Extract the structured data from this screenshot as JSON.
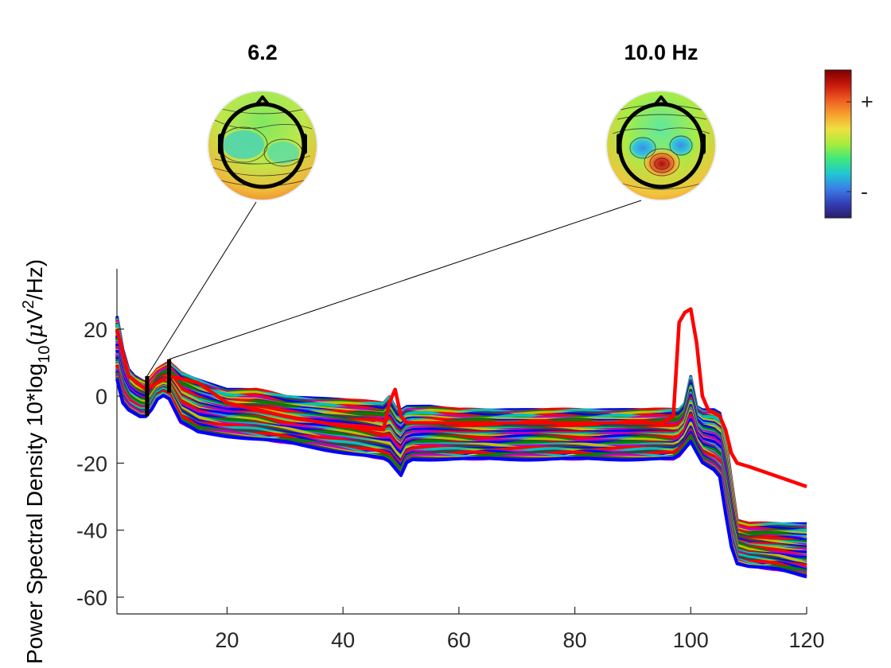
{
  "chart_data": {
    "type": "line",
    "ylabel": {
      "main": "Power Spectral Density 10*log",
      "sub10": "10",
      "unit_open": "(",
      "mu": "μ",
      "unit_v": "V",
      "sup2": "2",
      "unit_close": "/Hz)"
    },
    "xlim": [
      1,
      120
    ],
    "ylim": [
      -65,
      38
    ],
    "x_ticks": [
      20,
      40,
      60,
      80,
      100,
      120
    ],
    "y_ticks": [
      20,
      0,
      -20,
      -40,
      -60
    ],
    "x_tick_labels": [
      "20",
      "40",
      "60",
      "80",
      "100",
      "120"
    ],
    "y_tick_labels": [
      "20",
      "0",
      "-20",
      "-40",
      "-60"
    ],
    "grid": false,
    "legend": "none",
    "series_colors": [
      "#0000ff",
      "#ff0000",
      "#008000",
      "#00bfbf",
      "#bf00bf",
      "#bfbf00",
      "#404040"
    ],
    "channel_count": 64,
    "envelope": {
      "x": [
        1,
        2,
        3,
        4,
        5,
        6,
        7,
        8,
        9,
        10,
        12,
        15,
        20,
        25,
        30,
        40,
        47,
        48,
        49,
        50,
        51,
        52,
        55,
        60,
        70,
        80,
        90,
        95,
        97,
        98,
        99,
        100,
        101,
        102,
        103,
        104,
        105,
        106,
        107,
        108,
        110,
        115,
        120
      ],
      "upper": [
        24,
        14,
        8,
        6,
        5,
        4,
        6,
        8,
        9,
        10,
        7,
        5,
        2,
        2,
        0,
        -1,
        -2,
        0,
        -3,
        -4,
        -3,
        -3,
        -3,
        -4,
        -4,
        -4,
        -4,
        -4,
        -4,
        -4,
        -2,
        6,
        -3,
        -4,
        -4,
        -4,
        -5,
        -12,
        -25,
        -37,
        -38,
        -38,
        -38
      ],
      "lower": [
        5,
        -2,
        -4,
        -5,
        -6,
        -6,
        -4,
        -1,
        0,
        -1,
        -8,
        -11,
        -12,
        -13,
        -14,
        -17,
        -19,
        -20,
        -22,
        -24,
        -20,
        -19,
        -19,
        -19,
        -19,
        -19,
        -19,
        -19,
        -19,
        -18,
        -16,
        -14,
        -17,
        -20,
        -21,
        -22,
        -24,
        -35,
        -45,
        -50,
        -51,
        -52,
        -54
      ]
    },
    "outlier_series": {
      "name_color": "#ff0000",
      "x": [
        1,
        3,
        6,
        10,
        15,
        20,
        30,
        40,
        47,
        48,
        49,
        50,
        51,
        52,
        55,
        60,
        70,
        80,
        90,
        95,
        97,
        98,
        99,
        100,
        101,
        102,
        103,
        104,
        105,
        106,
        107,
        108,
        110,
        115,
        120
      ],
      "y": [
        20,
        6,
        2,
        6,
        4,
        -2,
        -6,
        -9,
        -10,
        -2,
        2,
        -6,
        -8,
        -8,
        -8,
        -8,
        -8,
        -8,
        -8,
        -8,
        -6,
        22,
        25,
        26,
        16,
        0,
        -4,
        -5,
        -6,
        -10,
        -17,
        -20,
        -21,
        -24,
        -27
      ]
    },
    "markers": [
      {
        "freq": 6.2,
        "label": "6.2",
        "y_range": [
          -6,
          6
        ]
      },
      {
        "freq": 10.0,
        "label": "10.0 Hz",
        "y_range": [
          1,
          11
        ]
      }
    ],
    "colorbar": {
      "plus": "+",
      "minus": "-",
      "colors": [
        "#7a0000",
        "#c8180c",
        "#ee5a20",
        "#f7a02e",
        "#eee040",
        "#a8ec3c",
        "#40e87c",
        "#20c8d0",
        "#3a80e8",
        "#3440b8",
        "#2a1c6a"
      ]
    },
    "topoplots": [
      {
        "title": "6.2",
        "pattern": "theta"
      },
      {
        "title": "10.0 Hz",
        "pattern": "alpha"
      }
    ]
  }
}
